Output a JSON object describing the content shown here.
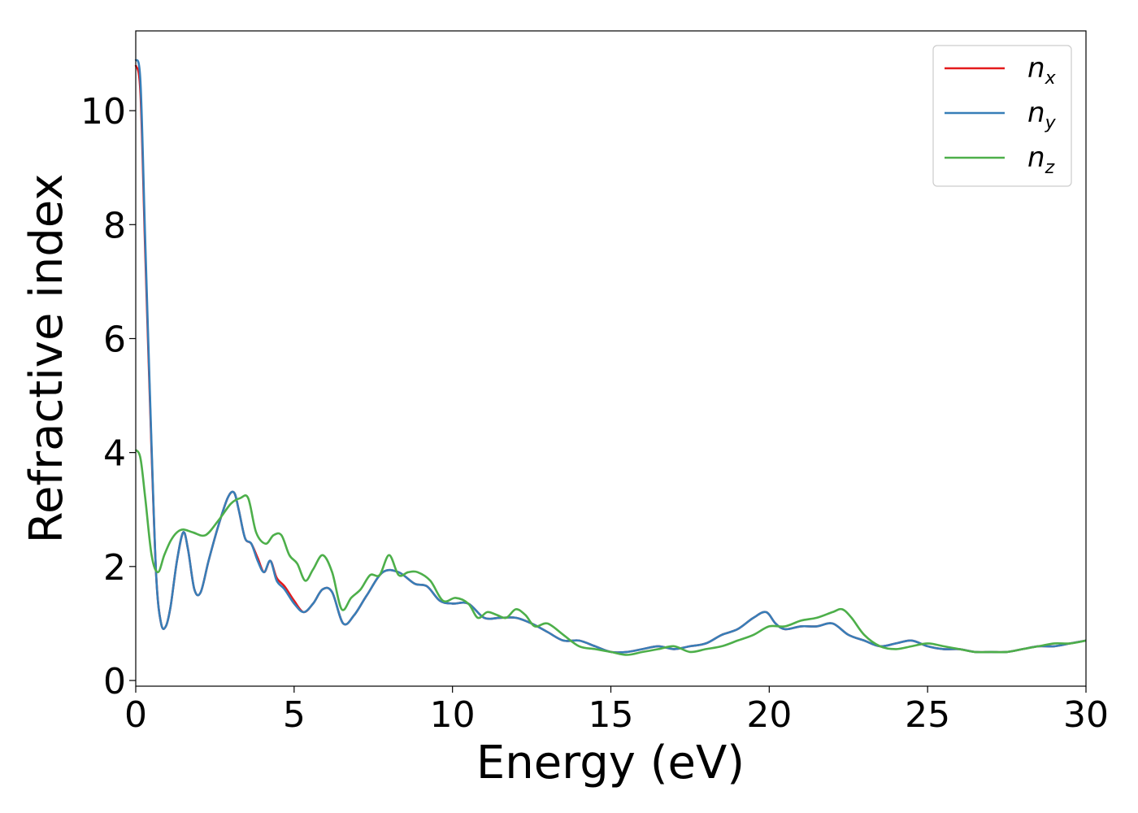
{
  "chart_data": {
    "type": "line",
    "title": "",
    "xlabel": "Energy (eV)",
    "ylabel": "Refractive index",
    "xlim": [
      0,
      30
    ],
    "ylim": [
      -0.1,
      11.4
    ],
    "xticks": [
      0,
      5,
      10,
      15,
      20,
      25,
      30
    ],
    "yticks": [
      0,
      2,
      4,
      6,
      8,
      10
    ],
    "grid": false,
    "legend_position": "top-right",
    "series": [
      {
        "name": "n",
        "subscript": "x",
        "color": "#e41a1c",
        "x": [
          0,
          0.15,
          0.3,
          0.5,
          0.65,
          0.8,
          0.95,
          1.1,
          1.3,
          1.5,
          1.65,
          1.85,
          2.05,
          2.3,
          2.6,
          2.9,
          3.1,
          3.25,
          3.45,
          3.65,
          3.85,
          4.05,
          4.25,
          4.45,
          4.7,
          5.0,
          5.3,
          5.6,
          5.9,
          6.2,
          6.55,
          6.9,
          7.3,
          7.8,
          8.3,
          8.8,
          9.2,
          9.6,
          10.0,
          10.5,
          11.0,
          11.5,
          12.0,
          12.5,
          13.0,
          13.5,
          14.0,
          14.5,
          15.0,
          15.5,
          16.0,
          16.5,
          17.0,
          17.5,
          18.0,
          18.5,
          19.0,
          19.5,
          19.9,
          20.2,
          20.5,
          21.0,
          21.5,
          22.0,
          22.5,
          23.0,
          23.5,
          24.0,
          24.5,
          25.0,
          25.5,
          26.0,
          26.5,
          27.0,
          27.5,
          28.0,
          28.5,
          29.0,
          29.5,
          30.0
        ],
        "values": [
          10.8,
          10.3,
          7.5,
          4.0,
          1.8,
          1.0,
          0.95,
          1.3,
          2.1,
          2.6,
          2.3,
          1.6,
          1.55,
          2.1,
          2.7,
          3.2,
          3.3,
          3.0,
          2.5,
          2.4,
          2.15,
          1.9,
          2.1,
          1.8,
          1.65,
          1.4,
          1.2,
          1.35,
          1.6,
          1.55,
          1.0,
          1.15,
          1.5,
          1.9,
          1.9,
          1.7,
          1.65,
          1.4,
          1.35,
          1.35,
          1.1,
          1.1,
          1.1,
          1.0,
          0.85,
          0.7,
          0.7,
          0.6,
          0.5,
          0.5,
          0.55,
          0.6,
          0.55,
          0.6,
          0.65,
          0.8,
          0.9,
          1.1,
          1.2,
          1.0,
          0.9,
          0.95,
          0.95,
          1.0,
          0.8,
          0.7,
          0.6,
          0.65,
          0.7,
          0.6,
          0.55,
          0.55,
          0.5,
          0.5,
          0.5,
          0.55,
          0.6,
          0.6,
          0.65,
          0.7
        ]
      },
      {
        "name": "n",
        "subscript": "y",
        "color": "#377eb8",
        "x": [
          0,
          0.15,
          0.3,
          0.5,
          0.65,
          0.8,
          0.95,
          1.1,
          1.3,
          1.5,
          1.65,
          1.85,
          2.05,
          2.3,
          2.6,
          2.9,
          3.1,
          3.25,
          3.45,
          3.65,
          3.85,
          4.05,
          4.25,
          4.45,
          4.7,
          5.0,
          5.3,
          5.6,
          5.9,
          6.2,
          6.55,
          6.9,
          7.3,
          7.8,
          8.3,
          8.8,
          9.2,
          9.6,
          10.0,
          10.5,
          11.0,
          11.5,
          12.0,
          12.5,
          13.0,
          13.5,
          14.0,
          14.5,
          15.0,
          15.5,
          16.0,
          16.5,
          17.0,
          17.5,
          18.0,
          18.5,
          19.0,
          19.5,
          19.9,
          20.2,
          20.5,
          21.0,
          21.5,
          22.0,
          22.5,
          23.0,
          23.5,
          24.0,
          24.5,
          25.0,
          25.5,
          26.0,
          26.5,
          27.0,
          27.5,
          28.0,
          28.5,
          29.0,
          29.5,
          30.0
        ],
        "values": [
          10.9,
          10.5,
          7.7,
          4.1,
          1.8,
          1.0,
          0.95,
          1.3,
          2.1,
          2.6,
          2.3,
          1.6,
          1.55,
          2.1,
          2.7,
          3.2,
          3.3,
          3.0,
          2.5,
          2.4,
          2.1,
          1.9,
          2.1,
          1.75,
          1.6,
          1.35,
          1.2,
          1.35,
          1.6,
          1.55,
          1.0,
          1.15,
          1.5,
          1.9,
          1.9,
          1.7,
          1.65,
          1.4,
          1.35,
          1.35,
          1.1,
          1.1,
          1.1,
          1.0,
          0.85,
          0.7,
          0.7,
          0.6,
          0.5,
          0.5,
          0.55,
          0.6,
          0.55,
          0.6,
          0.65,
          0.8,
          0.9,
          1.1,
          1.2,
          1.0,
          0.9,
          0.95,
          0.95,
          1.0,
          0.8,
          0.7,
          0.6,
          0.65,
          0.7,
          0.6,
          0.55,
          0.55,
          0.5,
          0.5,
          0.5,
          0.55,
          0.6,
          0.6,
          0.65,
          0.7
        ]
      },
      {
        "name": "n",
        "subscript": "z",
        "color": "#4daf4a",
        "x": [
          0,
          0.15,
          0.3,
          0.5,
          0.7,
          0.9,
          1.1,
          1.3,
          1.5,
          1.8,
          2.2,
          2.6,
          3.0,
          3.3,
          3.55,
          3.8,
          4.1,
          4.35,
          4.6,
          4.85,
          5.1,
          5.35,
          5.6,
          5.9,
          6.2,
          6.5,
          6.8,
          7.1,
          7.4,
          7.7,
          8.0,
          8.3,
          8.6,
          8.9,
          9.3,
          9.7,
          10.1,
          10.5,
          10.8,
          11.1,
          11.4,
          11.7,
          12.0,
          12.3,
          12.6,
          13.0,
          13.5,
          14.0,
          14.5,
          15.0,
          15.5,
          16.0,
          16.5,
          17.0,
          17.5,
          18.0,
          18.5,
          19.0,
          19.5,
          20.0,
          20.5,
          21.0,
          21.5,
          22.0,
          22.3,
          22.6,
          23.0,
          23.5,
          24.0,
          24.5,
          25.0,
          25.5,
          26.0,
          26.5,
          27.0,
          27.5,
          28.0,
          28.5,
          29.0,
          29.5,
          30.0
        ],
        "values": [
          4.05,
          3.9,
          3.2,
          2.2,
          1.9,
          2.2,
          2.45,
          2.6,
          2.65,
          2.6,
          2.55,
          2.8,
          3.1,
          3.2,
          3.2,
          2.6,
          2.4,
          2.55,
          2.55,
          2.2,
          2.05,
          1.75,
          1.95,
          2.2,
          1.9,
          1.25,
          1.45,
          1.6,
          1.85,
          1.85,
          2.2,
          1.85,
          1.9,
          1.9,
          1.75,
          1.4,
          1.45,
          1.35,
          1.1,
          1.2,
          1.15,
          1.1,
          1.25,
          1.15,
          0.95,
          1.0,
          0.8,
          0.6,
          0.55,
          0.5,
          0.45,
          0.5,
          0.55,
          0.6,
          0.5,
          0.55,
          0.6,
          0.7,
          0.8,
          0.95,
          0.95,
          1.05,
          1.1,
          1.2,
          1.25,
          1.1,
          0.8,
          0.6,
          0.55,
          0.6,
          0.65,
          0.6,
          0.55,
          0.5,
          0.5,
          0.5,
          0.55,
          0.6,
          0.65,
          0.65,
          0.7
        ]
      }
    ]
  }
}
